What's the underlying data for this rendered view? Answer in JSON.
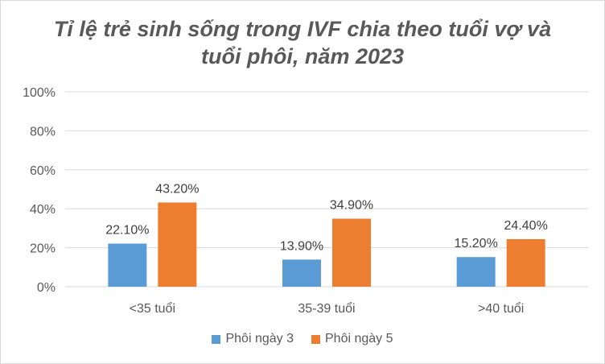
{
  "chart_data": {
    "type": "bar",
    "title_lines": [
      "Tỉ lệ trẻ sinh sống trong IVF chia theo tuổi vợ và",
      "tuổi phôi, năm 2023"
    ],
    "categories": [
      "<35 tuổi",
      "35-39 tuổi",
      ">40 tuổi"
    ],
    "series": [
      {
        "name": "Phôi ngày 3",
        "color": "#5B9BD5",
        "values": [
          22.1,
          13.9,
          15.2
        ],
        "labels": [
          "22.10%",
          "13.90%",
          "15.20%"
        ]
      },
      {
        "name": "Phôi ngày 5",
        "color": "#ED7D31",
        "values": [
          43.2,
          34.9,
          24.4
        ],
        "labels": [
          "43.20%",
          "34.90%",
          "24.40%"
        ]
      }
    ],
    "y_ticks": [
      "0%",
      "20%",
      "40%",
      "60%",
      "80%",
      "100%"
    ],
    "ylim": [
      0,
      100
    ],
    "grid": true,
    "legend_position": "bottom"
  }
}
